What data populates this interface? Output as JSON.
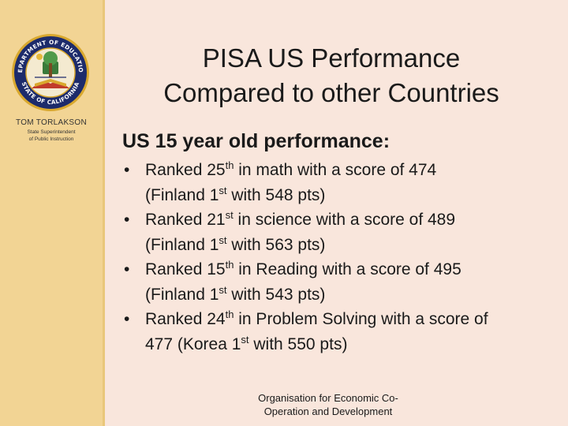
{
  "sidebar": {
    "seal": {
      "top_text": "DEPARTMENT OF EDUCATION",
      "bottom_text": "STATE OF CALIFORNIA"
    },
    "author_name": "TOM TORLAKSON",
    "author_role_line1": "State Superintendent",
    "author_role_line2": "of Public Instruction"
  },
  "title": {
    "line1": "PISA US Performance",
    "line2": "Compared to other Countries"
  },
  "subheading": "US 15 year old performance:",
  "bullets": [
    {
      "a": "Ranked 25",
      "a_sup": "th",
      "b": " in math with a score of 474",
      "c": "(Finland 1",
      "c_sup": "st",
      "d": " with 548 pts)"
    },
    {
      "a": "Ranked 21",
      "a_sup": "st",
      "b": " in science with a score of 489",
      "c": "(Finland 1",
      "c_sup": "st",
      "d": " with 563 pts)"
    },
    {
      "a": "Ranked 15",
      "a_sup": "th",
      "b": " in Reading with a score of 495",
      "c": "(Finland 1",
      "c_sup": "st",
      "d": " with 543 pts)"
    },
    {
      "a": "Ranked 24",
      "a_sup": "th",
      "b": " in Problem Solving with a score of",
      "c": "477 (Korea 1",
      "c_sup": "st",
      "d": " with 550 pts)"
    }
  ],
  "bullet_glyph": "•",
  "source": {
    "line1": "Organisation for Economic Co-",
    "line2": "Operation and Development"
  },
  "colors": {
    "background": "#f9e6dc",
    "sidebar": "#f2d494",
    "seal_navy": "#1d2b6b",
    "seal_gold": "#d9a82e"
  }
}
